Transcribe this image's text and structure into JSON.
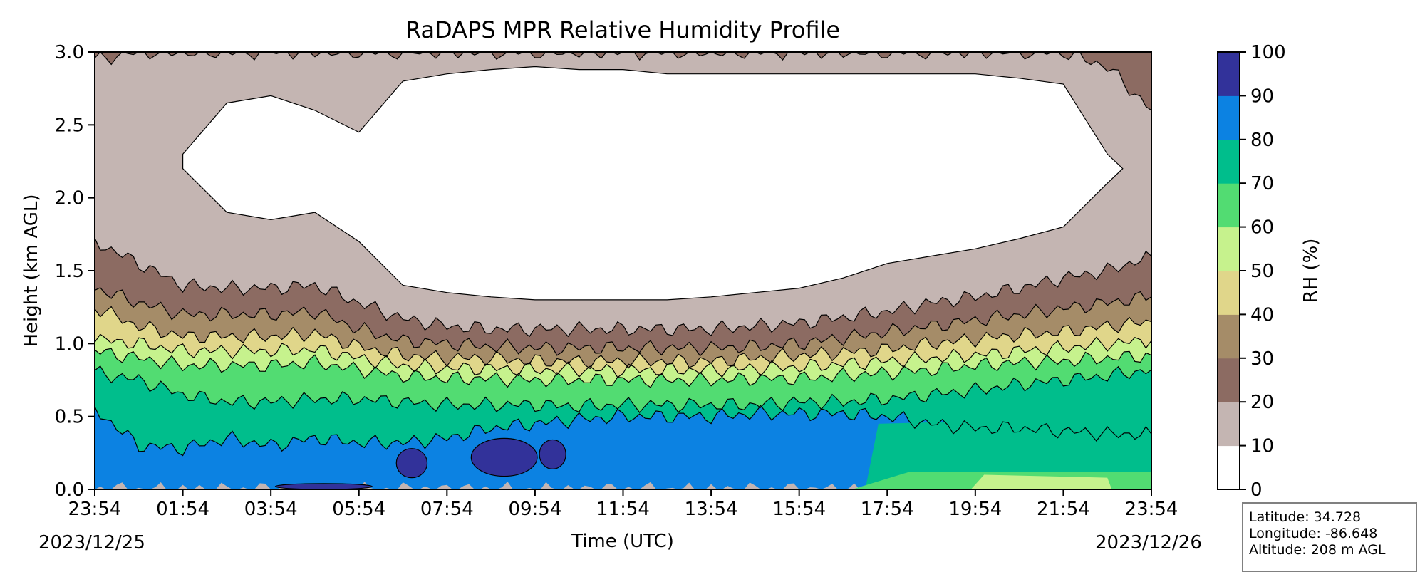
{
  "chart_data": {
    "type": "heatmap",
    "subtype": "filled-contour",
    "title": "RaDAPS MPR Relative Humidity Profile",
    "xlabel": "Time (UTC)",
    "ylabel": "Height (km AGL)",
    "x_tick_labels": [
      "23:54",
      "01:54",
      "03:54",
      "05:54",
      "07:54",
      "09:54",
      "11:54",
      "13:54",
      "15:54",
      "17:54",
      "19:54",
      "21:54",
      "23:54"
    ],
    "x_hours_from_start": [
      0,
      2,
      4,
      6,
      8,
      10,
      12,
      14,
      16,
      18,
      20,
      22,
      24
    ],
    "x_start_date": "2023/12/25",
    "x_end_date": "2023/12/26",
    "y_ticks": [
      0.0,
      0.5,
      1.0,
      1.5,
      2.0,
      2.5,
      3.0
    ],
    "y_tick_labels": [
      "0.0",
      "0.5",
      "1.0",
      "1.5",
      "2.0",
      "2.5",
      "3.0"
    ],
    "ylim": [
      0,
      3
    ],
    "colorbar": {
      "label": "RH (%)",
      "levels": [
        0,
        10,
        20,
        30,
        40,
        50,
        60,
        70,
        80,
        90,
        100
      ],
      "colors": [
        "#ffffff",
        "#c4b5b2",
        "#8c6b62",
        "#a58c68",
        "#e0d68a",
        "#c6f28d",
        "#52dc72",
        "#00be8c",
        "#0c82e2",
        "#32329a"
      ]
    },
    "contour_boundaries_km": {
      "hours": [
        0,
        1,
        2,
        3,
        4,
        5,
        6,
        7,
        8,
        9,
        10,
        11,
        12,
        13,
        14,
        15,
        16,
        17,
        18,
        19,
        20,
        21,
        22,
        23,
        24
      ],
      "rh_80": [
        0.55,
        0.3,
        0.28,
        0.35,
        0.3,
        0.35,
        0.32,
        0.32,
        0.35,
        0.42,
        0.45,
        0.48,
        0.5,
        0.5,
        0.5,
        0.52,
        0.52,
        0.52,
        0.5,
        0.45,
        0.42,
        0.42,
        0.4,
        0.38,
        0.38
      ],
      "rh_70": [
        0.8,
        0.75,
        0.65,
        0.6,
        0.6,
        0.62,
        0.62,
        0.6,
        0.58,
        0.58,
        0.58,
        0.57,
        0.58,
        0.58,
        0.58,
        0.58,
        0.6,
        0.6,
        0.62,
        0.65,
        0.68,
        0.72,
        0.75,
        0.78,
        0.82
      ],
      "rh_60": [
        0.95,
        0.9,
        0.85,
        0.85,
        0.85,
        0.87,
        0.82,
        0.78,
        0.76,
        0.76,
        0.75,
        0.75,
        0.75,
        0.75,
        0.75,
        0.76,
        0.76,
        0.78,
        0.8,
        0.82,
        0.85,
        0.87,
        0.88,
        0.9,
        0.92
      ],
      "rh_50": [
        1.03,
        1.0,
        0.95,
        0.95,
        0.95,
        0.96,
        0.9,
        0.85,
        0.83,
        0.83,
        0.82,
        0.82,
        0.82,
        0.82,
        0.82,
        0.83,
        0.84,
        0.86,
        0.88,
        0.9,
        0.92,
        0.95,
        0.97,
        1.0,
        1.02
      ],
      "rh_40": [
        1.25,
        1.12,
        1.05,
        1.05,
        1.05,
        1.07,
        0.98,
        0.92,
        0.9,
        0.9,
        0.88,
        0.88,
        0.88,
        0.88,
        0.88,
        0.9,
        0.92,
        0.94,
        0.96,
        1.0,
        1.03,
        1.06,
        1.08,
        1.12,
        1.15
      ],
      "rh_30": [
        1.38,
        1.28,
        1.2,
        1.2,
        1.2,
        1.22,
        1.1,
        1.02,
        1.0,
        0.98,
        0.97,
        0.97,
        0.97,
        0.97,
        0.97,
        0.98,
        1.0,
        1.04,
        1.08,
        1.12,
        1.16,
        1.2,
        1.24,
        1.28,
        1.32
      ],
      "rh_20": [
        1.7,
        1.55,
        1.4,
        1.38,
        1.38,
        1.4,
        1.28,
        1.17,
        1.12,
        1.1,
        1.1,
        1.1,
        1.1,
        1.1,
        1.1,
        1.12,
        1.14,
        1.18,
        1.22,
        1.28,
        1.32,
        1.38,
        1.45,
        1.5,
        1.6
      ],
      "rh_10_lower": [
        null,
        null,
        2.2,
        1.9,
        1.85,
        1.9,
        1.7,
        1.4,
        1.35,
        1.32,
        1.3,
        1.3,
        1.3,
        1.3,
        1.32,
        1.35,
        1.38,
        1.45,
        1.55,
        1.6,
        1.65,
        1.72,
        1.8,
        2.1,
        null
      ],
      "rh_10_upper": [
        null,
        null,
        2.3,
        2.65,
        2.7,
        2.6,
        2.45,
        2.8,
        2.85,
        2.88,
        2.9,
        2.88,
        2.88,
        2.85,
        2.85,
        2.85,
        2.85,
        2.85,
        2.85,
        2.85,
        2.85,
        2.82,
        2.78,
        2.3,
        null
      ],
      "rh_20_top": [
        2.95,
        3.0,
        3.0,
        3.0,
        3.0,
        3.0,
        3.0,
        3.0,
        3.0,
        3.0,
        3.0,
        3.0,
        3.0,
        3.0,
        3.0,
        3.0,
        3.0,
        3.0,
        3.0,
        3.0,
        3.0,
        3.0,
        3.0,
        2.9,
        2.6
      ]
    },
    "grid": false,
    "legend": "colorbar-right"
  },
  "info": {
    "latitude": "Latitude: 34.728",
    "longitude": "Longitude: -86.648",
    "altitude": "Altitude: 208 m AGL"
  }
}
